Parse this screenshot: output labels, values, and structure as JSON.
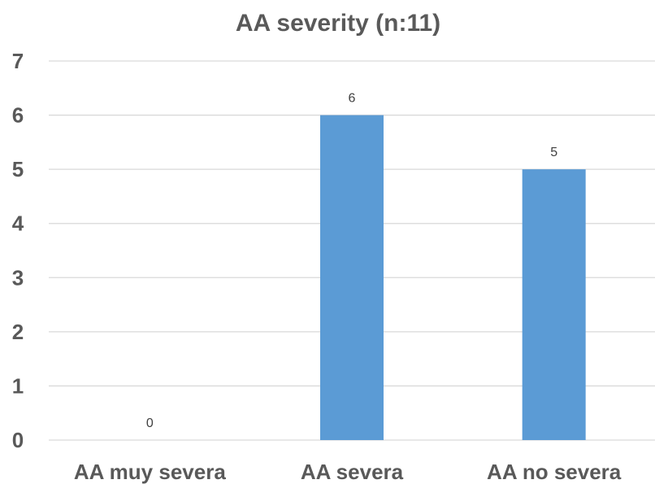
{
  "chart_data": {
    "type": "bar",
    "title": "AA severity (n:11)",
    "categories": [
      "AA muy severa",
      "AA severa",
      "AA no severa"
    ],
    "values": [
      0,
      6,
      5
    ],
    "data_labels": [
      "0",
      "6",
      "5"
    ],
    "ylim": [
      0,
      7
    ],
    "yticks": [
      "0",
      "1",
      "2",
      "3",
      "4",
      "5",
      "6",
      "7"
    ],
    "grid": true,
    "legend": "none",
    "bar_color": "#5b9bd5"
  }
}
